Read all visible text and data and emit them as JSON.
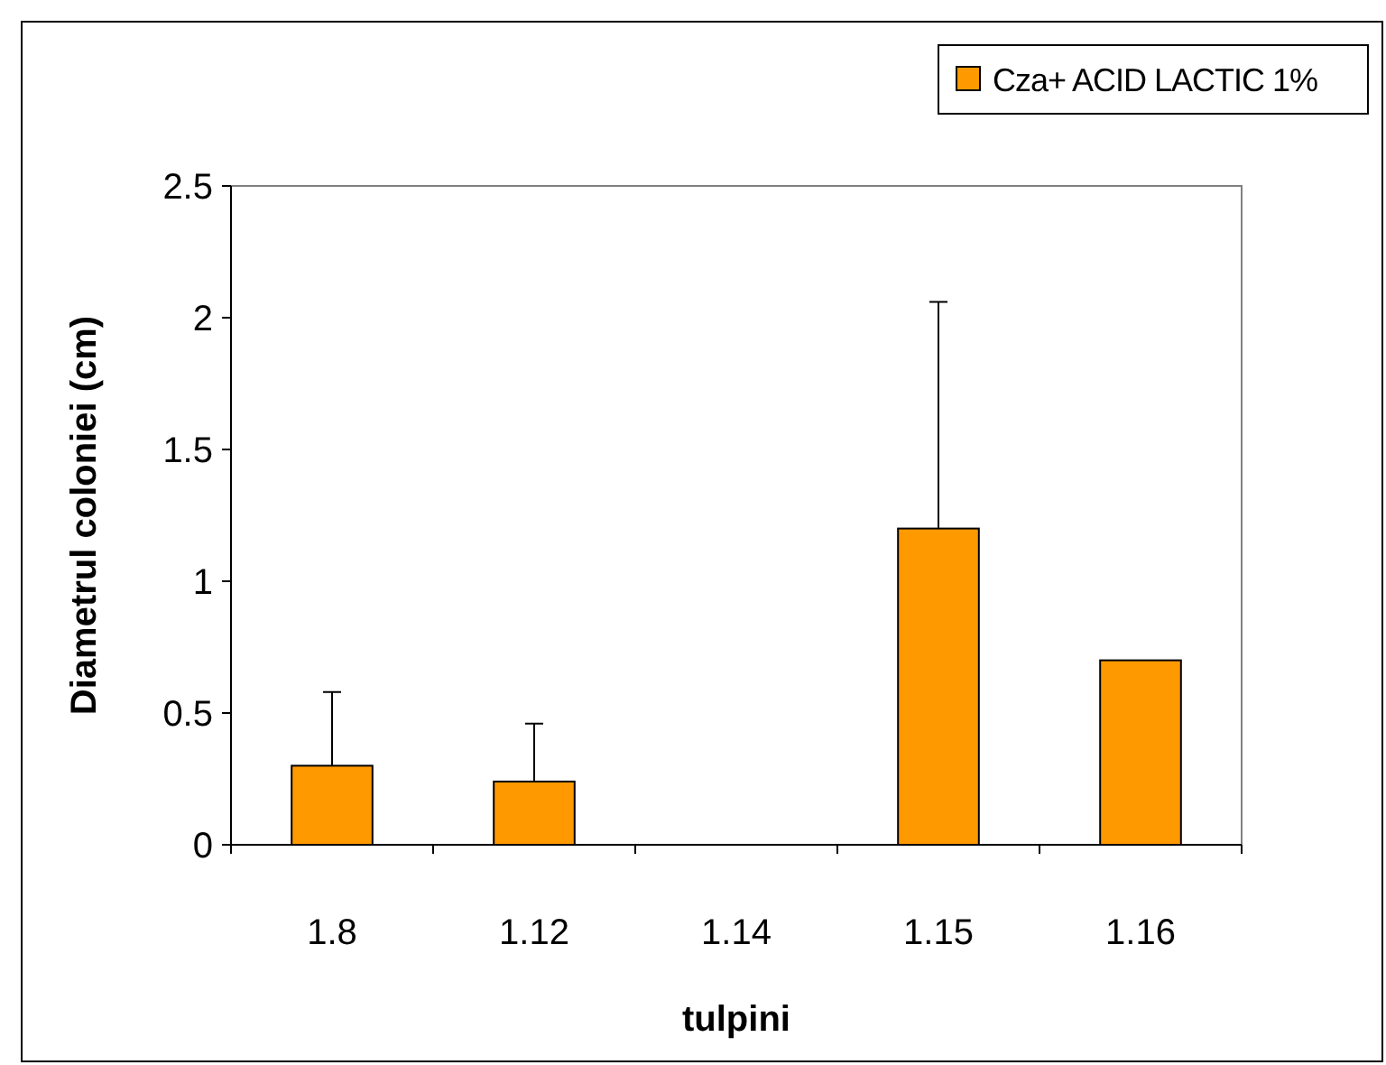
{
  "chart_data": {
    "type": "bar",
    "xlabel": "tulpini",
    "ylabel": "Diametrul coloniei (cm)",
    "categories": [
      "1.8",
      "1.12",
      "1.14",
      "1.15",
      "1.16"
    ],
    "series": [
      {
        "name": "Cza+ ACID LACTIC 1%",
        "color": "#ff9900",
        "values": [
          0.3,
          0.24,
          0,
          1.2,
          0.7
        ],
        "errors": [
          [
            0.3,
            0.58
          ],
          [
            0.24,
            0.46
          ],
          null,
          [
            1.2,
            2.06
          ],
          null
        ]
      }
    ],
    "ylim": [
      0,
      2.5
    ],
    "yticks": [
      0,
      0.5,
      1,
      1.5,
      2,
      2.5
    ],
    "grid": false,
    "legend": "top right"
  }
}
